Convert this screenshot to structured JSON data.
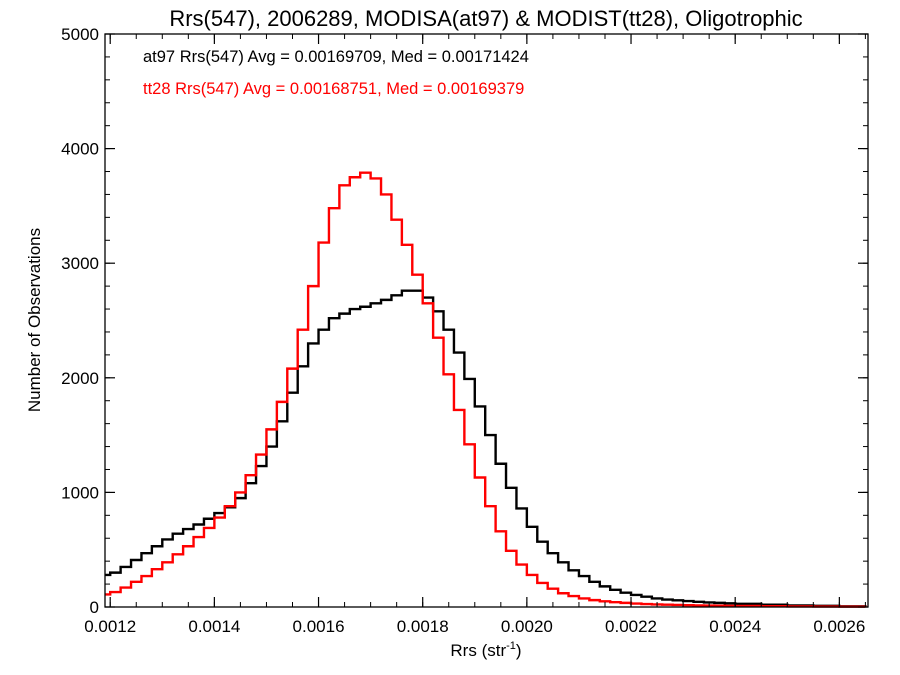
{
  "chart_data": {
    "type": "line",
    "title": "Rrs(547), 2006289, MODISA(at97) & MODIST(tt28), Oligotrophic",
    "xlabel": "Rrs (str",
    "xlabel_sup": "-1",
    "xlabel_end": ")",
    "ylabel": "Number of Observations",
    "xlim": [
      0.00119,
      0.002655
    ],
    "ylim": [
      0,
      5000
    ],
    "xticks": [
      0.0012,
      0.0014,
      0.0016,
      0.0018,
      0.002,
      0.0022,
      0.0024,
      0.0026
    ],
    "xtick_labels": [
      "0.0012",
      "0.0014",
      "0.0016",
      "0.0018",
      "0.0020",
      "0.0022",
      "0.0024",
      "0.0026"
    ],
    "yticks": [
      0,
      1000,
      2000,
      3000,
      4000,
      5000
    ],
    "ytick_labels": [
      "0",
      "1000",
      "2000",
      "3000",
      "4000",
      "5000"
    ],
    "grid": false,
    "annotations": [
      {
        "text": "at97 Rrs(547) Avg = 0.00169709, Med = 0.00171424",
        "color": "#000000"
      },
      {
        "text": "tt28 Rrs(547) Avg = 0.00168751, Med = 0.00169379",
        "color": "#ff0000"
      }
    ],
    "series": [
      {
        "name": "at97",
        "color": "#000000",
        "x": [
          0.00119,
          0.0012,
          0.00122,
          0.00124,
          0.00126,
          0.00128,
          0.0013,
          0.00132,
          0.00134,
          0.00136,
          0.00138,
          0.0014,
          0.00142,
          0.00144,
          0.00146,
          0.00148,
          0.0015,
          0.00152,
          0.00154,
          0.00156,
          0.00158,
          0.0016,
          0.00162,
          0.00164,
          0.00166,
          0.00168,
          0.0017,
          0.00172,
          0.00174,
          0.00176,
          0.00178,
          0.0018,
          0.00182,
          0.00184,
          0.00186,
          0.00188,
          0.0019,
          0.00192,
          0.00194,
          0.00196,
          0.00198,
          0.002,
          0.00202,
          0.00204,
          0.00206,
          0.00208,
          0.0021,
          0.00212,
          0.00214,
          0.00216,
          0.00218,
          0.0022,
          0.00222,
          0.00224,
          0.00226,
          0.00228,
          0.0023,
          0.00232,
          0.00234,
          0.00236,
          0.00238,
          0.0024,
          0.00245,
          0.0025,
          0.00255,
          0.0026,
          0.00265
        ],
        "y": [
          280,
          300,
          350,
          410,
          470,
          530,
          590,
          640,
          680,
          720,
          770,
          820,
          870,
          950,
          1080,
          1230,
          1400,
          1620,
          1870,
          2100,
          2300,
          2420,
          2520,
          2560,
          2600,
          2620,
          2650,
          2680,
          2720,
          2760,
          2760,
          2700,
          2580,
          2420,
          2220,
          1990,
          1750,
          1500,
          1250,
          1040,
          860,
          700,
          570,
          470,
          390,
          320,
          270,
          220,
          180,
          150,
          125,
          105,
          90,
          75,
          65,
          58,
          52,
          45,
          40,
          36,
          32,
          28,
          20,
          14,
          10,
          6,
          4
        ]
      },
      {
        "name": "tt28",
        "color": "#ff0000",
        "x": [
          0.00119,
          0.0012,
          0.00122,
          0.00124,
          0.00126,
          0.00128,
          0.0013,
          0.00132,
          0.00134,
          0.00136,
          0.00138,
          0.0014,
          0.00142,
          0.00144,
          0.00146,
          0.00148,
          0.0015,
          0.00152,
          0.00154,
          0.00156,
          0.00158,
          0.0016,
          0.00162,
          0.00164,
          0.00166,
          0.00168,
          0.0017,
          0.00172,
          0.00174,
          0.00176,
          0.00178,
          0.0018,
          0.00182,
          0.00184,
          0.00186,
          0.00188,
          0.0019,
          0.00192,
          0.00194,
          0.00196,
          0.00198,
          0.002,
          0.00202,
          0.00204,
          0.00206,
          0.00208,
          0.0021,
          0.00212,
          0.00214,
          0.00216,
          0.00218,
          0.0022,
          0.00222,
          0.00224,
          0.00226,
          0.00228,
          0.0023,
          0.00232,
          0.00234,
          0.00236,
          0.00238,
          0.0024,
          0.00245,
          0.0025,
          0.00255,
          0.0026,
          0.00265
        ],
        "y": [
          110,
          130,
          170,
          220,
          270,
          330,
          390,
          460,
          530,
          610,
          690,
          780,
          880,
          1000,
          1150,
          1330,
          1550,
          1790,
          2080,
          2420,
          2800,
          3180,
          3480,
          3680,
          3750,
          3790,
          3740,
          3600,
          3380,
          3160,
          2900,
          2650,
          2350,
          2030,
          1720,
          1420,
          1130,
          880,
          660,
          490,
          370,
          280,
          210,
          160,
          120,
          95,
          75,
          60,
          50,
          42,
          36,
          30,
          26,
          22,
          20,
          18,
          16,
          14,
          12,
          11,
          10,
          9,
          7,
          5,
          4,
          3,
          2
        ]
      }
    ]
  }
}
